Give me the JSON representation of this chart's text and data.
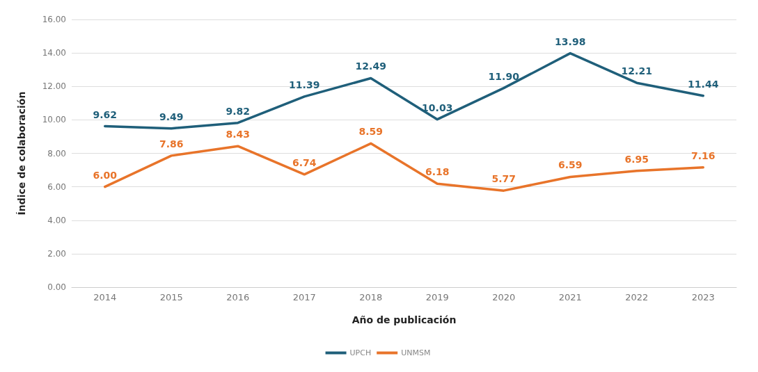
{
  "chart_data": {
    "type": "line",
    "xlabel": "Año de publicación",
    "ylabel": "Índice de colaboración",
    "categories": [
      "2014",
      "2015",
      "2016",
      "2017",
      "2018",
      "2019",
      "2020",
      "2021",
      "2022",
      "2023"
    ],
    "series": [
      {
        "name": "UPCH",
        "color": "#1f5f7a",
        "values": [
          9.62,
          9.49,
          9.82,
          11.39,
          12.49,
          10.03,
          11.9,
          13.98,
          12.21,
          11.44
        ],
        "value_labels": [
          "9.62",
          "9.49",
          "9.82",
          "11.39",
          "12.49",
          "10.03",
          "11.90",
          "13.98",
          "12.21",
          "11.44"
        ]
      },
      {
        "name": "UNMSM",
        "color": "#e8742a",
        "values": [
          6,
          7.86,
          8.43,
          6.74,
          8.59,
          6.18,
          5.77,
          6.59,
          6.95,
          7.16
        ],
        "value_labels": [
          "6.00",
          "7.86",
          "8.43",
          "6.74",
          "8.59",
          "6.18",
          "5.77",
          "6.59",
          "6.95",
          "7.16"
        ]
      }
    ],
    "ylim": [
      0,
      16
    ],
    "yticks": [
      {
        "value": 0,
        "label": "0.00"
      },
      {
        "value": 2,
        "label": "2.00"
      },
      {
        "value": 4,
        "label": "4.00"
      },
      {
        "value": 6,
        "label": "6.00"
      },
      {
        "value": 8,
        "label": "8.00"
      },
      {
        "value": 10,
        "label": "10.00"
      },
      {
        "value": 12,
        "label": "12.00"
      },
      {
        "value": 14,
        "label": "14.00"
      },
      {
        "value": 16,
        "label": "16.00"
      }
    ],
    "grid": "y",
    "legend": "bottom",
    "marker": "none",
    "line_style": "solid"
  }
}
